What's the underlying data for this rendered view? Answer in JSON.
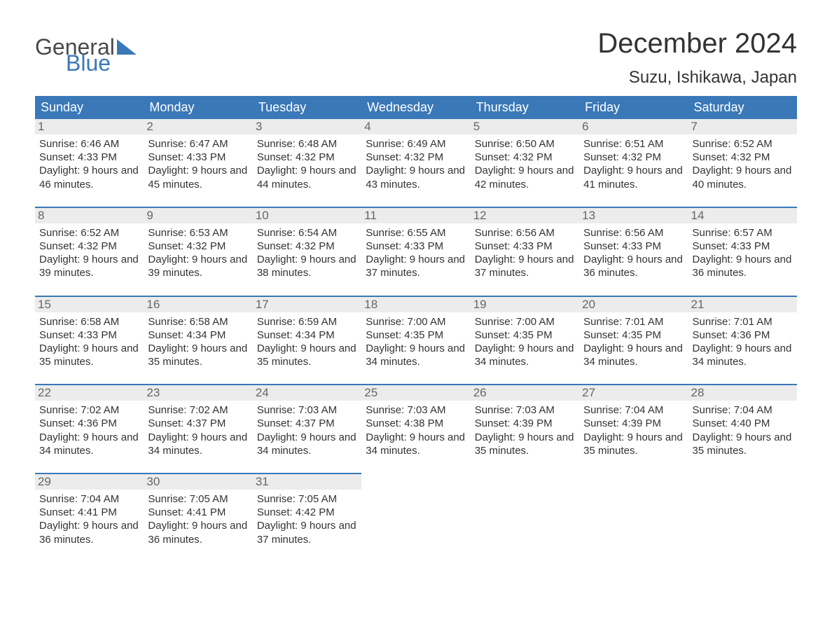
{
  "logo": {
    "line1": "General",
    "line2": "Blue"
  },
  "title": "December 2024",
  "location": "Suzu, Ishikawa, Japan",
  "colors": {
    "header_bg": "#3a78b8",
    "daynum_bg": "#ececec",
    "text": "#333333",
    "daynum_text": "#666666",
    "page_bg": "#ffffff"
  },
  "typography": {
    "title_fontsize": 40,
    "location_fontsize": 24,
    "dayhead_fontsize": 18,
    "cell_fontsize": 15
  },
  "day_headers": [
    "Sunday",
    "Monday",
    "Tuesday",
    "Wednesday",
    "Thursday",
    "Friday",
    "Saturday"
  ],
  "weeks": [
    [
      {
        "num": "1",
        "sunrise": "Sunrise: 6:46 AM",
        "sunset": "Sunset: 4:33 PM",
        "daylight": "Daylight: 9 hours and 46 minutes."
      },
      {
        "num": "2",
        "sunrise": "Sunrise: 6:47 AM",
        "sunset": "Sunset: 4:33 PM",
        "daylight": "Daylight: 9 hours and 45 minutes."
      },
      {
        "num": "3",
        "sunrise": "Sunrise: 6:48 AM",
        "sunset": "Sunset: 4:32 PM",
        "daylight": "Daylight: 9 hours and 44 minutes."
      },
      {
        "num": "4",
        "sunrise": "Sunrise: 6:49 AM",
        "sunset": "Sunset: 4:32 PM",
        "daylight": "Daylight: 9 hours and 43 minutes."
      },
      {
        "num": "5",
        "sunrise": "Sunrise: 6:50 AM",
        "sunset": "Sunset: 4:32 PM",
        "daylight": "Daylight: 9 hours and 42 minutes."
      },
      {
        "num": "6",
        "sunrise": "Sunrise: 6:51 AM",
        "sunset": "Sunset: 4:32 PM",
        "daylight": "Daylight: 9 hours and 41 minutes."
      },
      {
        "num": "7",
        "sunrise": "Sunrise: 6:52 AM",
        "sunset": "Sunset: 4:32 PM",
        "daylight": "Daylight: 9 hours and 40 minutes."
      }
    ],
    [
      {
        "num": "8",
        "sunrise": "Sunrise: 6:52 AM",
        "sunset": "Sunset: 4:32 PM",
        "daylight": "Daylight: 9 hours and 39 minutes."
      },
      {
        "num": "9",
        "sunrise": "Sunrise: 6:53 AM",
        "sunset": "Sunset: 4:32 PM",
        "daylight": "Daylight: 9 hours and 39 minutes."
      },
      {
        "num": "10",
        "sunrise": "Sunrise: 6:54 AM",
        "sunset": "Sunset: 4:32 PM",
        "daylight": "Daylight: 9 hours and 38 minutes."
      },
      {
        "num": "11",
        "sunrise": "Sunrise: 6:55 AM",
        "sunset": "Sunset: 4:33 PM",
        "daylight": "Daylight: 9 hours and 37 minutes."
      },
      {
        "num": "12",
        "sunrise": "Sunrise: 6:56 AM",
        "sunset": "Sunset: 4:33 PM",
        "daylight": "Daylight: 9 hours and 37 minutes."
      },
      {
        "num": "13",
        "sunrise": "Sunrise: 6:56 AM",
        "sunset": "Sunset: 4:33 PM",
        "daylight": "Daylight: 9 hours and 36 minutes."
      },
      {
        "num": "14",
        "sunrise": "Sunrise: 6:57 AM",
        "sunset": "Sunset: 4:33 PM",
        "daylight": "Daylight: 9 hours and 36 minutes."
      }
    ],
    [
      {
        "num": "15",
        "sunrise": "Sunrise: 6:58 AM",
        "sunset": "Sunset: 4:33 PM",
        "daylight": "Daylight: 9 hours and 35 minutes."
      },
      {
        "num": "16",
        "sunrise": "Sunrise: 6:58 AM",
        "sunset": "Sunset: 4:34 PM",
        "daylight": "Daylight: 9 hours and 35 minutes."
      },
      {
        "num": "17",
        "sunrise": "Sunrise: 6:59 AM",
        "sunset": "Sunset: 4:34 PM",
        "daylight": "Daylight: 9 hours and 35 minutes."
      },
      {
        "num": "18",
        "sunrise": "Sunrise: 7:00 AM",
        "sunset": "Sunset: 4:35 PM",
        "daylight": "Daylight: 9 hours and 34 minutes."
      },
      {
        "num": "19",
        "sunrise": "Sunrise: 7:00 AM",
        "sunset": "Sunset: 4:35 PM",
        "daylight": "Daylight: 9 hours and 34 minutes."
      },
      {
        "num": "20",
        "sunrise": "Sunrise: 7:01 AM",
        "sunset": "Sunset: 4:35 PM",
        "daylight": "Daylight: 9 hours and 34 minutes."
      },
      {
        "num": "21",
        "sunrise": "Sunrise: 7:01 AM",
        "sunset": "Sunset: 4:36 PM",
        "daylight": "Daylight: 9 hours and 34 minutes."
      }
    ],
    [
      {
        "num": "22",
        "sunrise": "Sunrise: 7:02 AM",
        "sunset": "Sunset: 4:36 PM",
        "daylight": "Daylight: 9 hours and 34 minutes."
      },
      {
        "num": "23",
        "sunrise": "Sunrise: 7:02 AM",
        "sunset": "Sunset: 4:37 PM",
        "daylight": "Daylight: 9 hours and 34 minutes."
      },
      {
        "num": "24",
        "sunrise": "Sunrise: 7:03 AM",
        "sunset": "Sunset: 4:37 PM",
        "daylight": "Daylight: 9 hours and 34 minutes."
      },
      {
        "num": "25",
        "sunrise": "Sunrise: 7:03 AM",
        "sunset": "Sunset: 4:38 PM",
        "daylight": "Daylight: 9 hours and 34 minutes."
      },
      {
        "num": "26",
        "sunrise": "Sunrise: 7:03 AM",
        "sunset": "Sunset: 4:39 PM",
        "daylight": "Daylight: 9 hours and 35 minutes."
      },
      {
        "num": "27",
        "sunrise": "Sunrise: 7:04 AM",
        "sunset": "Sunset: 4:39 PM",
        "daylight": "Daylight: 9 hours and 35 minutes."
      },
      {
        "num": "28",
        "sunrise": "Sunrise: 7:04 AM",
        "sunset": "Sunset: 4:40 PM",
        "daylight": "Daylight: 9 hours and 35 minutes."
      }
    ],
    [
      {
        "num": "29",
        "sunrise": "Sunrise: 7:04 AM",
        "sunset": "Sunset: 4:41 PM",
        "daylight": "Daylight: 9 hours and 36 minutes."
      },
      {
        "num": "30",
        "sunrise": "Sunrise: 7:05 AM",
        "sunset": "Sunset: 4:41 PM",
        "daylight": "Daylight: 9 hours and 36 minutes."
      },
      {
        "num": "31",
        "sunrise": "Sunrise: 7:05 AM",
        "sunset": "Sunset: 4:42 PM",
        "daylight": "Daylight: 9 hours and 37 minutes."
      },
      null,
      null,
      null,
      null
    ]
  ]
}
